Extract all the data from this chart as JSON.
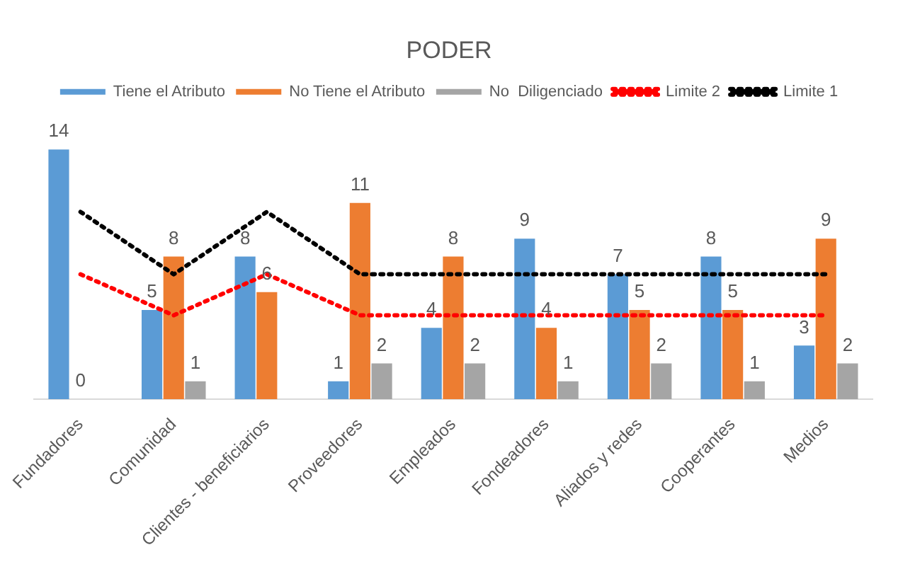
{
  "chart_data": {
    "type": "bar",
    "title": "PODER",
    "categories": [
      "Fundadores",
      "Comunidad",
      "Clientes - beneficiarios",
      "Proveedores",
      "Empleados",
      "Fondeadores",
      "Aliados y redes",
      "Cooperantes",
      "Medios"
    ],
    "series": [
      {
        "name": "Tiene el Atributo",
        "color": "#5b9bd5",
        "values": [
          14,
          5,
          8,
          1,
          4,
          9,
          7,
          8,
          3
        ],
        "value_labels": [
          "14",
          "5",
          "8",
          "1",
          "4",
          "9",
          "7",
          "8",
          "3"
        ]
      },
      {
        "name": "No Tiene el Atributo",
        "color": "#ed7d31",
        "values": [
          0,
          8,
          6,
          11,
          8,
          4,
          5,
          5,
          9
        ],
        "value_labels": [
          "0",
          "8",
          "6",
          "11",
          "8",
          "4",
          "5",
          "5",
          "9"
        ]
      },
      {
        "name": "No  Diligenciado",
        "color": "#a5a5a5",
        "values": [
          null,
          1,
          null,
          2,
          2,
          1,
          2,
          1,
          2
        ],
        "value_labels": [
          null,
          "1",
          null,
          "2",
          "2",
          "1",
          "2",
          "1",
          "2"
        ]
      },
      {
        "name": "Limite 2",
        "type": "line",
        "color": "#ff0000",
        "line_style": "dotted",
        "marker": "none",
        "values": [
          7,
          4.7,
          7,
          4.7,
          4.7,
          4.7,
          4.7,
          4.7,
          4.7
        ]
      },
      {
        "name": "Limite 1",
        "type": "line",
        "color": "#000000",
        "line_style": "dotted",
        "marker": "none",
        "values": [
          10.5,
          7,
          10.5,
          7,
          7,
          7,
          7,
          7,
          7
        ]
      }
    ],
    "legend": "top"
  }
}
